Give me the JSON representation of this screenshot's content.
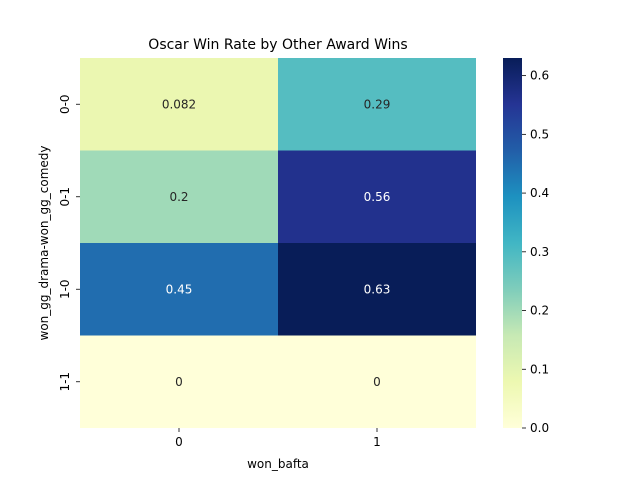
{
  "chart_data": {
    "type": "heatmap",
    "title": "Oscar Win Rate by Other Award Wins",
    "xlabel": "won_bafta",
    "ylabel": "won_gg_drama-won_gg_comedy",
    "x_categories": [
      "0",
      "1"
    ],
    "y_categories": [
      "0-0",
      "0-1",
      "1-0",
      "1-1"
    ],
    "values": [
      [
        0.082,
        0.29
      ],
      [
        0.2,
        0.56
      ],
      [
        0.45,
        0.63
      ],
      [
        0,
        0
      ]
    ],
    "annotations": [
      [
        "0.082",
        "0.29"
      ],
      [
        "0.2",
        "0.56"
      ],
      [
        "0.45",
        "0.63"
      ],
      [
        "0",
        "0"
      ]
    ],
    "colormap": "YlGnBu",
    "vmin": 0.0,
    "vmax": 0.63,
    "colorbar_ticks": [
      "0.0",
      "0.1",
      "0.2",
      "0.3",
      "0.4",
      "0.5",
      "0.6"
    ],
    "colorbar_values": [
      0.0,
      0.1,
      0.2,
      0.3,
      0.4,
      0.5,
      0.6
    ]
  }
}
